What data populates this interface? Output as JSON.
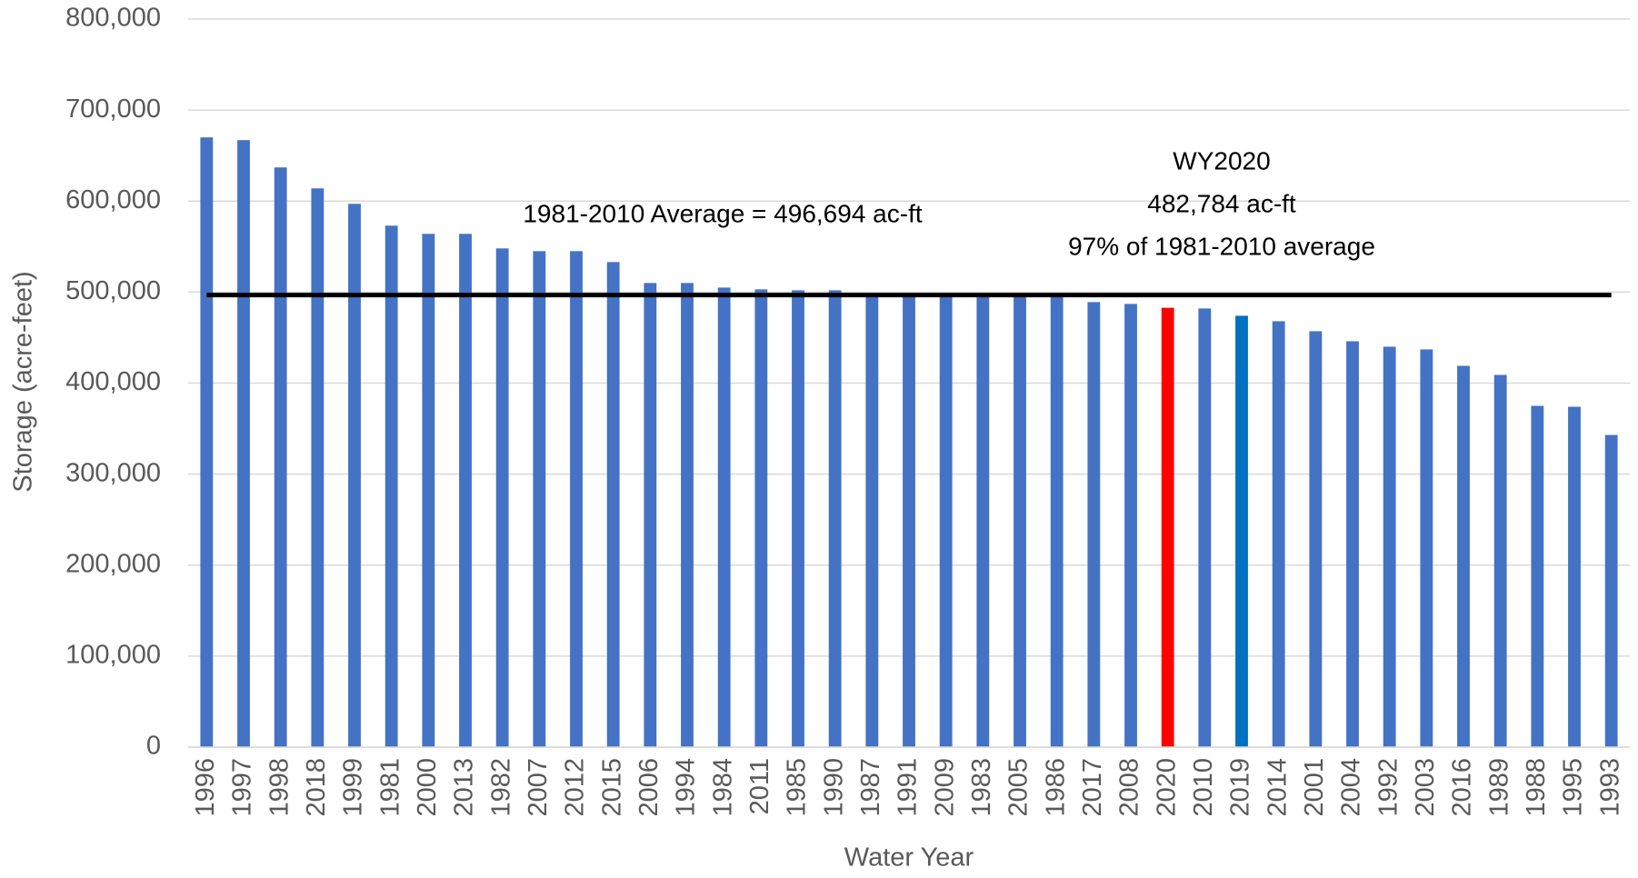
{
  "chart_data": {
    "type": "bar",
    "x_label": "Water Year",
    "y_label": "Storage (acre-feet)",
    "categories": [
      "1996",
      "1997",
      "1998",
      "2018",
      "1999",
      "1981",
      "2000",
      "2013",
      "1982",
      "2007",
      "2012",
      "2015",
      "2006",
      "1994",
      "1984",
      "2011",
      "1985",
      "1990",
      "1987",
      "1991",
      "2009",
      "1983",
      "2005",
      "1986",
      "2017",
      "2008",
      "2020",
      "2010",
      "2019",
      "2014",
      "2001",
      "2004",
      "1992",
      "2003",
      "2016",
      "1989",
      "1988",
      "1995",
      "1993"
    ],
    "values": [
      670000,
      667000,
      637000,
      614000,
      597000,
      573000,
      564000,
      564000,
      548000,
      545000,
      545000,
      533000,
      510000,
      510000,
      505000,
      503000,
      502000,
      502000,
      498000,
      497000,
      497000,
      496000,
      496000,
      495000,
      489000,
      487000,
      482784,
      482000,
      474000,
      468000,
      457000,
      446000,
      440000,
      437000,
      419000,
      409000,
      375000,
      374000,
      343000
    ],
    "colors": [
      "#4472c4",
      "#4472c4",
      "#4472c4",
      "#4472c4",
      "#4472c4",
      "#4472c4",
      "#4472c4",
      "#4472c4",
      "#4472c4",
      "#4472c4",
      "#4472c4",
      "#4472c4",
      "#4472c4",
      "#4472c4",
      "#4472c4",
      "#4472c4",
      "#4472c4",
      "#4472c4",
      "#4472c4",
      "#4472c4",
      "#4472c4",
      "#4472c4",
      "#4472c4",
      "#4472c4",
      "#4472c4",
      "#4472c4",
      "#ff0000",
      "#4472c4",
      "#0070c0",
      "#4472c4",
      "#4472c4",
      "#4472c4",
      "#4472c4",
      "#4472c4",
      "#4472c4",
      "#4472c4",
      "#4472c4",
      "#4472c4",
      "#4472c4"
    ],
    "average": 496694,
    "average_label": "1981-2010 Average = 496,694 ac-ft",
    "average_color": "#000000",
    "annotation": [
      "WY2020",
      "482,784 ac-ft",
      "97% of 1981-2010 average"
    ],
    "ylim": [
      0,
      800000
    ],
    "yticks": [
      0,
      {
        "value": 100000,
        "label": "100,000"
      },
      {
        "value": 200000,
        "label": "200,000"
      },
      {
        "value": 300000,
        "label": "300,000"
      },
      {
        "value": 400000,
        "label": "400,000"
      },
      {
        "value": 500000,
        "label": "500,000"
      },
      {
        "value": 600000,
        "label": "600,000"
      },
      {
        "value": 700000,
        "label": "700,000"
      },
      {
        "value": 800000,
        "label": "800,000"
      }
    ],
    "grid": true
  }
}
